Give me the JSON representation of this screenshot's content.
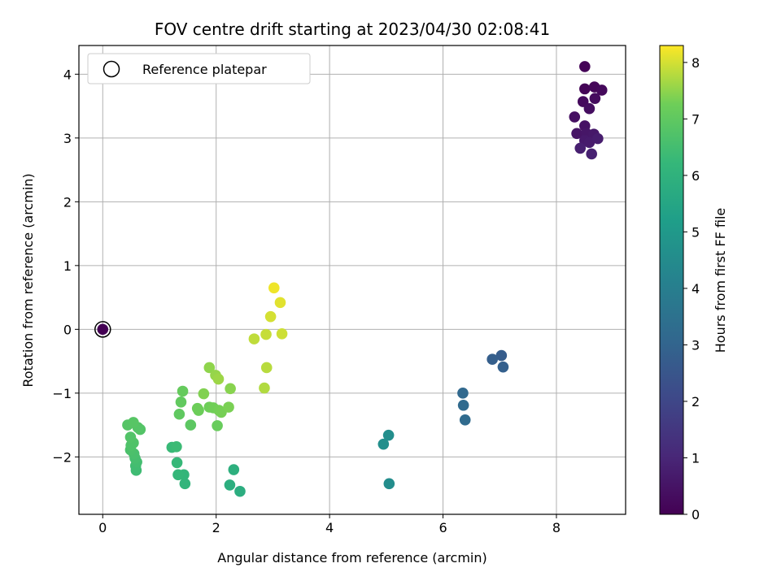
{
  "chart_data": {
    "type": "scatter",
    "title": "FOV centre drift starting at 2023/04/30 02:08:41",
    "xlabel": "Angular distance from reference (arcmin)",
    "ylabel": "Rotation from reference (arcmin)",
    "xlim": [
      -0.42,
      9.22
    ],
    "ylim": [
      -2.9,
      4.45
    ],
    "xticks": [
      0,
      2,
      4,
      6,
      8
    ],
    "xtick_labels": [
      "0",
      "2",
      "4",
      "6",
      "8"
    ],
    "yticks": [
      -2,
      -1,
      0,
      1,
      2,
      3,
      4
    ],
    "ytick_labels": [
      "−2",
      "−1",
      "0",
      "1",
      "2",
      "3",
      "4"
    ],
    "grid": true,
    "legend": {
      "placement": "upper-left",
      "entries": [
        {
          "label": "Reference platepar",
          "marker": "hollow-circle"
        }
      ]
    },
    "reference_point": {
      "x": 0,
      "y": 0
    },
    "colorbar": {
      "label": "Hours from first FF file",
      "range": [
        0,
        8.3
      ],
      "ticks": [
        0,
        1,
        2,
        3,
        4,
        5,
        6,
        7,
        8
      ],
      "tick_labels": [
        "0",
        "1",
        "2",
        "3",
        "4",
        "5",
        "6",
        "7",
        "8"
      ],
      "colormap": "viridis"
    },
    "points": [
      {
        "x": 8.5,
        "y": 4.12,
        "t": 0.05
      },
      {
        "x": 8.5,
        "y": 3.77,
        "t": 0.1
      },
      {
        "x": 8.67,
        "y": 3.8,
        "t": 0.15
      },
      {
        "x": 8.8,
        "y": 3.75,
        "t": 0.2
      },
      {
        "x": 8.47,
        "y": 3.57,
        "t": 0.25
      },
      {
        "x": 8.68,
        "y": 3.62,
        "t": 0.3
      },
      {
        "x": 8.58,
        "y": 3.46,
        "t": 0.35
      },
      {
        "x": 8.32,
        "y": 3.33,
        "t": 0.4
      },
      {
        "x": 8.5,
        "y": 3.19,
        "t": 0.45
      },
      {
        "x": 8.36,
        "y": 3.07,
        "t": 0.5
      },
      {
        "x": 8.53,
        "y": 3.07,
        "t": 0.55
      },
      {
        "x": 8.66,
        "y": 3.06,
        "t": 0.6
      },
      {
        "x": 8.5,
        "y": 2.96,
        "t": 0.65
      },
      {
        "x": 8.58,
        "y": 2.93,
        "t": 0.7
      },
      {
        "x": 8.73,
        "y": 2.99,
        "t": 0.75
      },
      {
        "x": 8.42,
        "y": 2.84,
        "t": 0.8
      },
      {
        "x": 8.62,
        "y": 2.75,
        "t": 0.85
      },
      {
        "x": 7.03,
        "y": -0.41,
        "t": 2.75
      },
      {
        "x": 6.87,
        "y": -0.47,
        "t": 2.8
      },
      {
        "x": 7.06,
        "y": -0.59,
        "t": 2.85
      },
      {
        "x": 6.35,
        "y": -1.0,
        "t": 3.15
      },
      {
        "x": 6.36,
        "y": -1.19,
        "t": 3.2
      },
      {
        "x": 6.39,
        "y": -1.42,
        "t": 3.25
      },
      {
        "x": 5.04,
        "y": -1.66,
        "t": 4.6
      },
      {
        "x": 4.95,
        "y": -1.8,
        "t": 4.65
      },
      {
        "x": 5.05,
        "y": -2.42,
        "t": 4.55
      },
      {
        "x": 2.42,
        "y": -2.54,
        "t": 5.8
      },
      {
        "x": 2.24,
        "y": -2.44,
        "t": 5.85
      },
      {
        "x": 2.31,
        "y": -2.2,
        "t": 5.9
      },
      {
        "x": 1.45,
        "y": -2.42,
        "t": 6.1
      },
      {
        "x": 1.43,
        "y": -2.28,
        "t": 6.15
      },
      {
        "x": 1.33,
        "y": -2.28,
        "t": 6.2
      },
      {
        "x": 1.31,
        "y": -2.09,
        "t": 6.25
      },
      {
        "x": 1.22,
        "y": -1.85,
        "t": 6.3
      },
      {
        "x": 1.3,
        "y": -1.84,
        "t": 6.35
      },
      {
        "x": 0.59,
        "y": -2.21,
        "t": 6.4
      },
      {
        "x": 0.58,
        "y": -2.14,
        "t": 6.45
      },
      {
        "x": 0.6,
        "y": -2.08,
        "t": 6.5
      },
      {
        "x": 0.57,
        "y": -2.02,
        "t": 6.55
      },
      {
        "x": 0.55,
        "y": -1.95,
        "t": 6.6
      },
      {
        "x": 0.49,
        "y": -1.89,
        "t": 6.65
      },
      {
        "x": 0.5,
        "y": -1.82,
        "t": 6.7
      },
      {
        "x": 0.54,
        "y": -1.78,
        "t": 6.72
      },
      {
        "x": 0.49,
        "y": -1.69,
        "t": 6.75
      },
      {
        "x": 0.66,
        "y": -1.57,
        "t": 6.78
      },
      {
        "x": 0.62,
        "y": -1.54,
        "t": 6.8
      },
      {
        "x": 0.44,
        "y": -1.5,
        "t": 6.82
      },
      {
        "x": 0.54,
        "y": -1.46,
        "t": 6.85
      },
      {
        "x": 1.55,
        "y": -1.5,
        "t": 6.95
      },
      {
        "x": 1.35,
        "y": -1.33,
        "t": 7.0
      },
      {
        "x": 1.38,
        "y": -1.14,
        "t": 7.05
      },
      {
        "x": 1.41,
        "y": -0.97,
        "t": 7.1
      },
      {
        "x": 2.02,
        "y": -1.51,
        "t": 7.15
      },
      {
        "x": 1.69,
        "y": -1.27,
        "t": 7.2
      },
      {
        "x": 1.67,
        "y": -1.24,
        "t": 7.22
      },
      {
        "x": 1.88,
        "y": -1.22,
        "t": 7.25
      },
      {
        "x": 1.95,
        "y": -1.23,
        "t": 7.28
      },
      {
        "x": 2.05,
        "y": -1.27,
        "t": 7.3
      },
      {
        "x": 2.09,
        "y": -1.3,
        "t": 7.32
      },
      {
        "x": 2.22,
        "y": -1.22,
        "t": 7.35
      },
      {
        "x": 1.78,
        "y": -1.01,
        "t": 7.4
      },
      {
        "x": 2.25,
        "y": -0.93,
        "t": 7.45
      },
      {
        "x": 1.88,
        "y": -0.6,
        "t": 7.5
      },
      {
        "x": 1.99,
        "y": -0.72,
        "t": 7.55
      },
      {
        "x": 2.04,
        "y": -0.78,
        "t": 7.6
      },
      {
        "x": 2.85,
        "y": -0.92,
        "t": 7.75
      },
      {
        "x": 2.89,
        "y": -0.6,
        "t": 7.8
      },
      {
        "x": 2.67,
        "y": -0.15,
        "t": 7.85
      },
      {
        "x": 2.88,
        "y": -0.08,
        "t": 7.9
      },
      {
        "x": 3.16,
        "y": -0.07,
        "t": 7.95
      },
      {
        "x": 2.96,
        "y": 0.2,
        "t": 8.0
      },
      {
        "x": 3.13,
        "y": 0.42,
        "t": 8.1
      },
      {
        "x": 3.02,
        "y": 0.65,
        "t": 8.2
      }
    ]
  }
}
